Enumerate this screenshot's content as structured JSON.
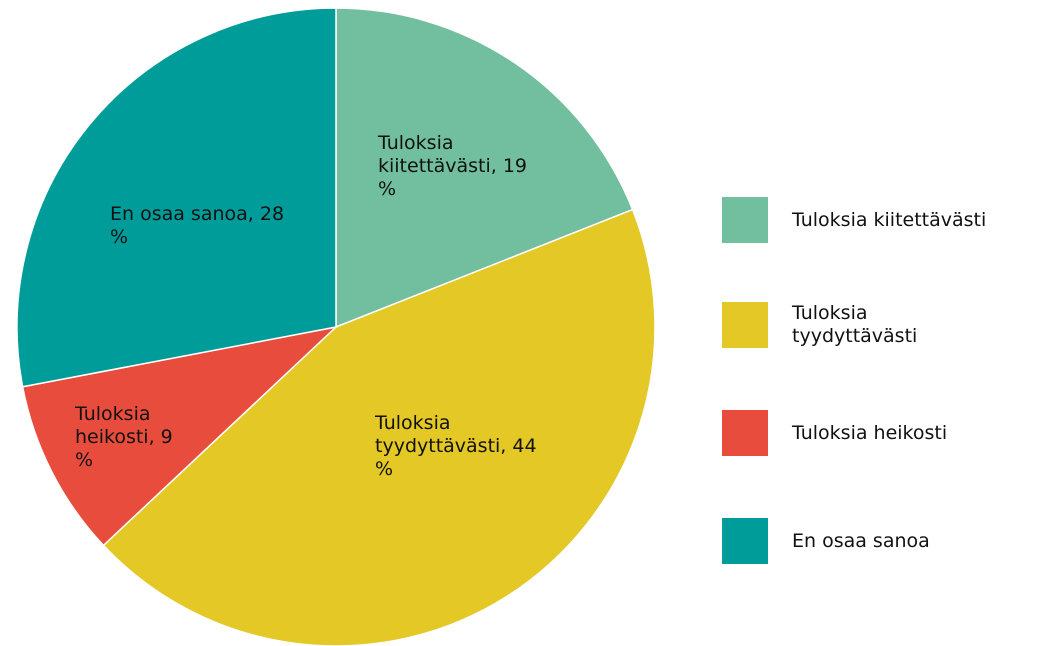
{
  "chart_data": {
    "type": "pie",
    "categories": [
      "Tuloksia kiitettävästi",
      "Tuloksia tyydyttävästi",
      "Tuloksia heikosti",
      "En osaa sanoa"
    ],
    "values": [
      19,
      44,
      9,
      28
    ],
    "value_labels": [
      "Tuloksia kiitettävästi, 19 %",
      "Tuloksia tyydyttävästi, 44 %",
      "Tuloksia heikosti, 9 %",
      "En osaa sanoa, 28 %"
    ],
    "colors": [
      "#72bf9f",
      "#e3c826",
      "#e84c3d",
      "#009c9a"
    ],
    "legend": "right"
  }
}
